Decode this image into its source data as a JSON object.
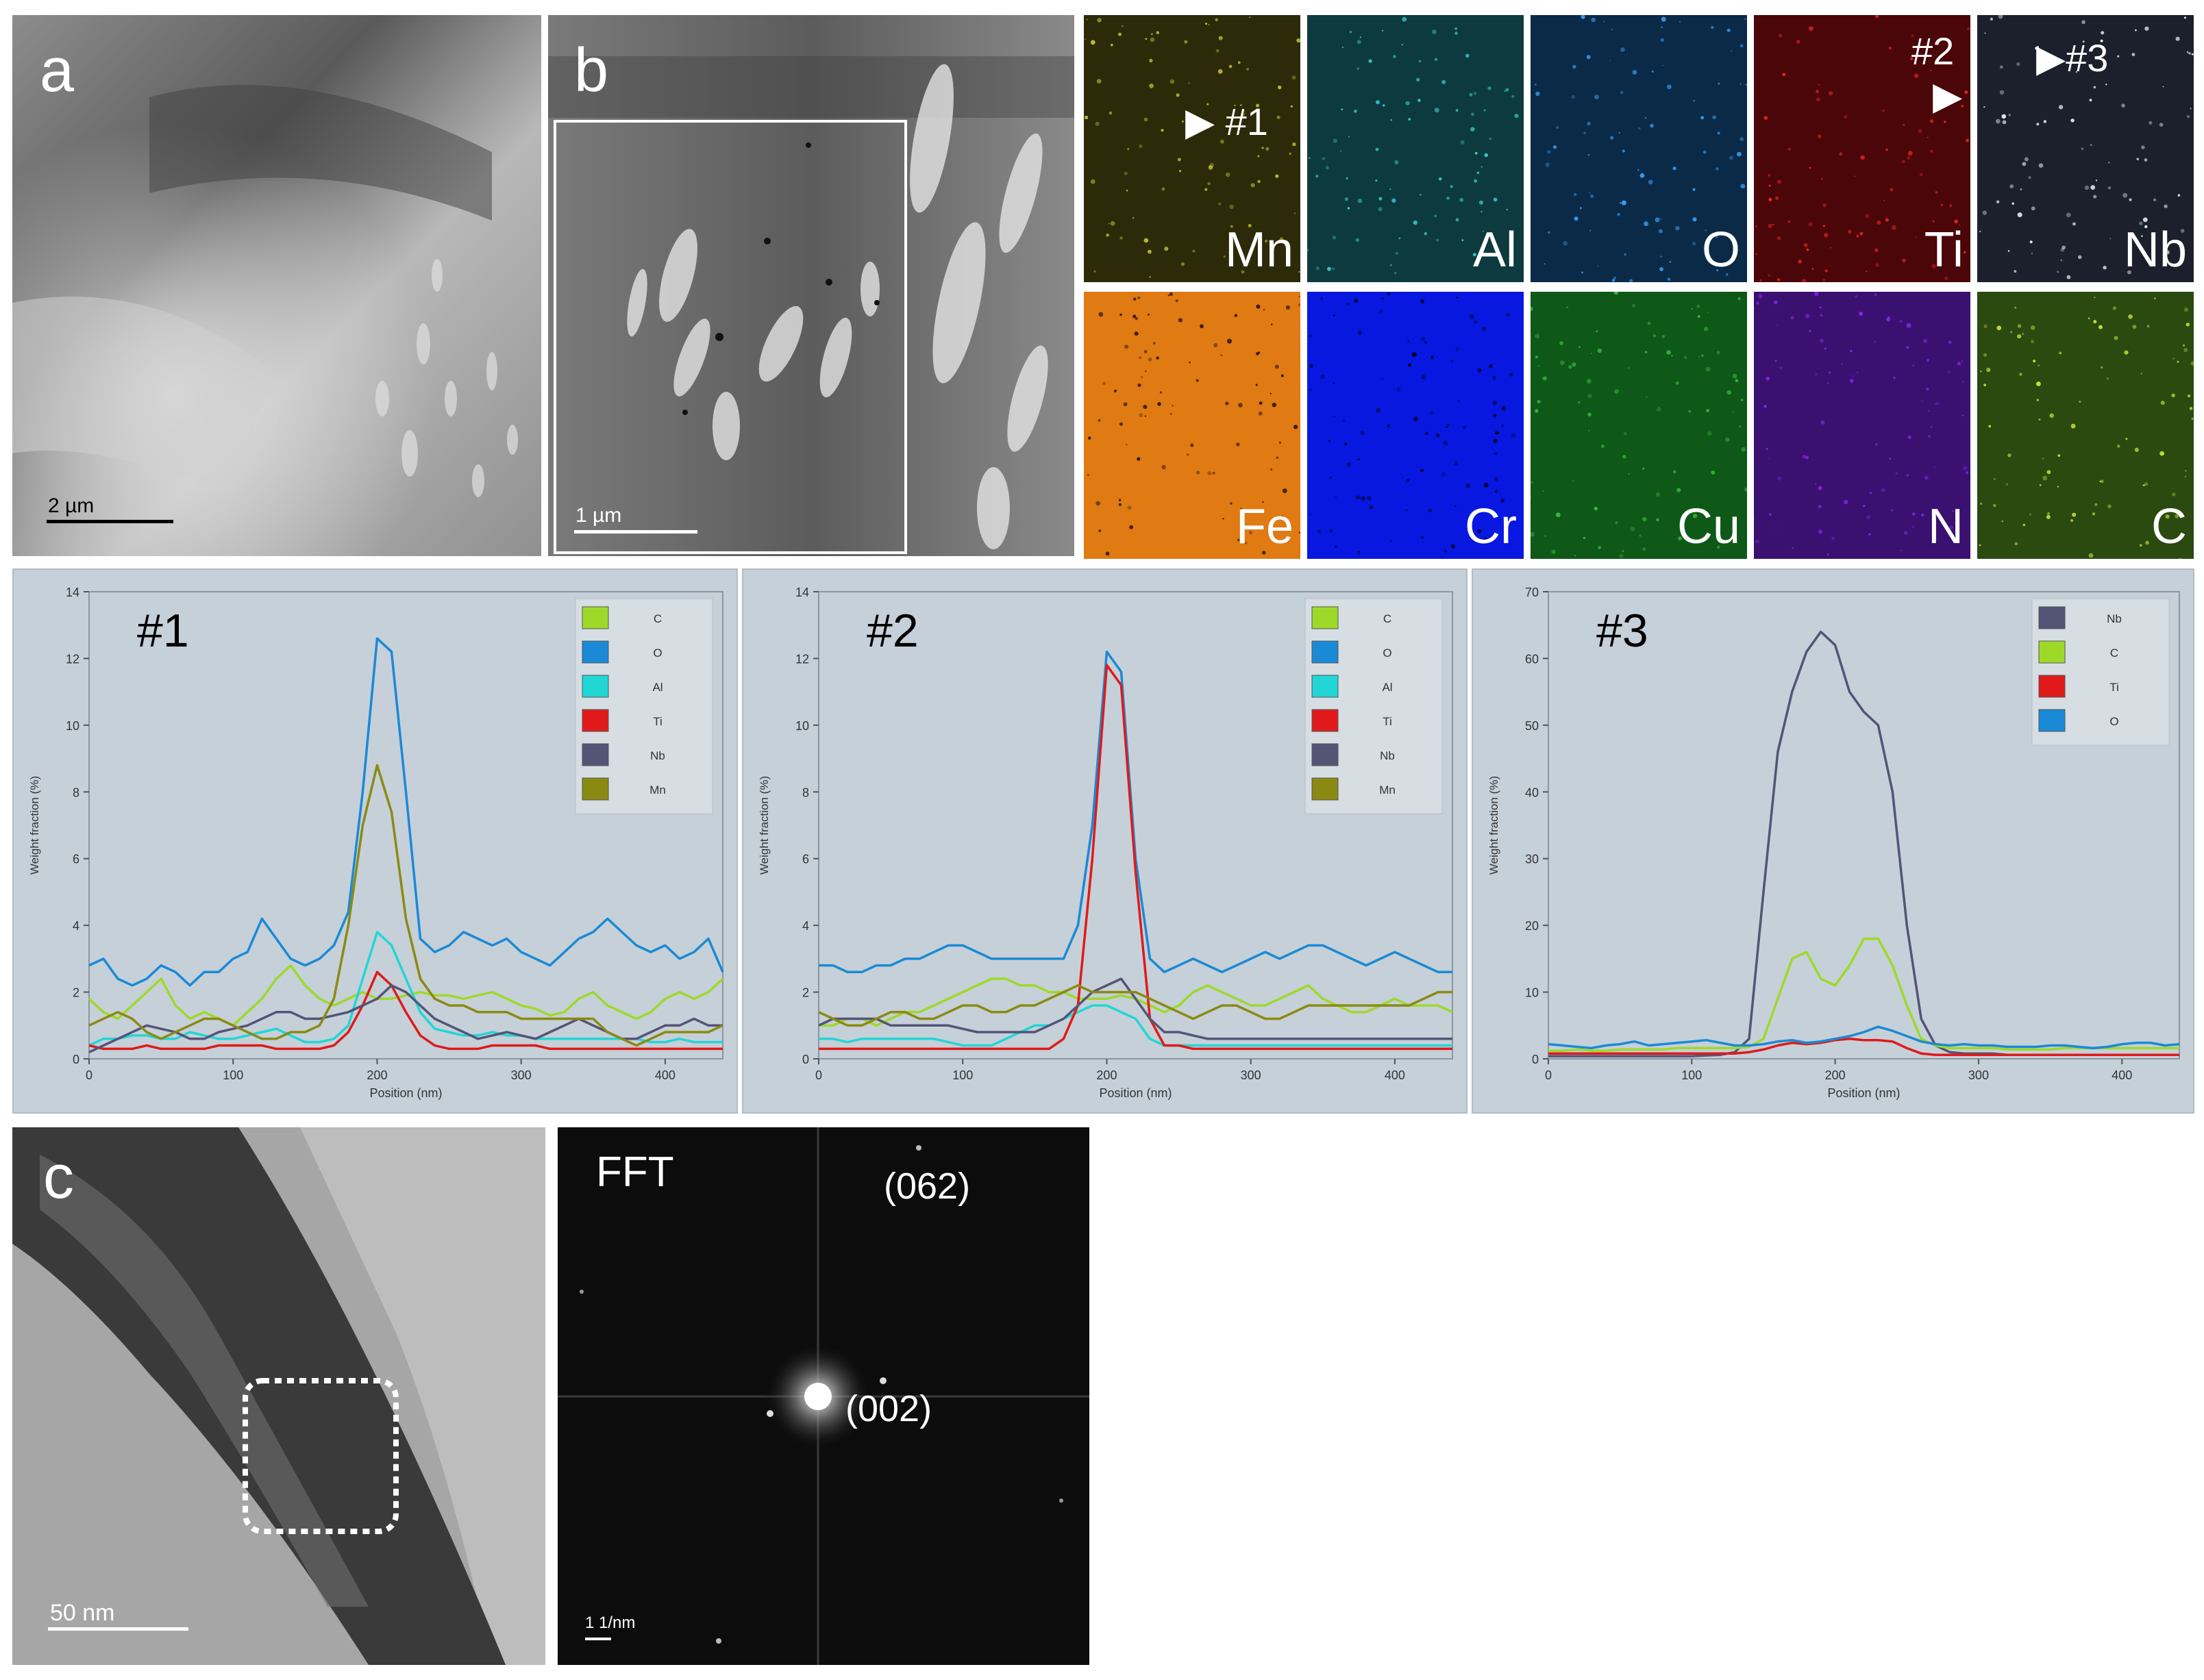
{
  "panels": {
    "a": {
      "label": "a",
      "scale_bar": "2  µm"
    },
    "b": {
      "label": "b",
      "scale_bar": "1  µm"
    },
    "c": {
      "label": "c",
      "scale_bar": "50  nm"
    },
    "fft": {
      "label": "FFT",
      "scale_bar": "1 1/nm",
      "spot_top": "(062)",
      "spot_center": "(002)"
    }
  },
  "eds_maps": [
    {
      "element": "Mn",
      "color": "#2c2a08",
      "dot": "#d6d23a"
    },
    {
      "element": "Al",
      "color": "#0d3a3e",
      "dot": "#3fe0e0"
    },
    {
      "element": "O",
      "color": "#0b2a48",
      "dot": "#3aa6ff"
    },
    {
      "element": "Ti",
      "color": "#4a0608",
      "dot": "#ff2a2a"
    },
    {
      "element": "Nb",
      "color": "#1c1f2c",
      "dot": "#ffffff"
    },
    {
      "element": "Fe",
      "color": "#e07a12",
      "dot": "#1a0c00"
    },
    {
      "element": "Cr",
      "color": "#0818e0",
      "dot": "#000010"
    },
    {
      "element": "Cu",
      "color": "#0e5818",
      "dot": "#3cc040"
    },
    {
      "element": "N",
      "color": "#3a1070",
      "dot": "#8a2cf0"
    },
    {
      "element": "C",
      "color": "#2a4a10",
      "dot": "#d8f040"
    }
  ],
  "markers": {
    "m1": "#1",
    "m2": "#2",
    "m3": "#3"
  },
  "chart_data": [
    {
      "type": "line",
      "title": "#1",
      "xlabel": "Position (nm)",
      "ylabel": "Weight fraction (%)",
      "xlim": [
        0,
        440
      ],
      "ylim": [
        0,
        14
      ],
      "xticks": [
        "0",
        "100",
        "200",
        "300",
        "400"
      ],
      "yticks": [
        "0",
        "2",
        "4",
        "6",
        "8",
        "10",
        "12",
        "14"
      ],
      "x": [
        0,
        10,
        20,
        30,
        40,
        50,
        60,
        70,
        80,
        90,
        100,
        110,
        120,
        130,
        140,
        150,
        160,
        170,
        180,
        190,
        200,
        210,
        220,
        230,
        240,
        250,
        260,
        270,
        280,
        290,
        300,
        310,
        320,
        330,
        340,
        350,
        360,
        370,
        380,
        390,
        400,
        410,
        420,
        430,
        440
      ],
      "series": [
        {
          "name": "C",
          "color": "#9ed92a",
          "values": [
            1.8,
            1.4,
            1.2,
            1.6,
            2.0,
            2.4,
            1.6,
            1.2,
            1.4,
            1.2,
            1.0,
            1.4,
            1.8,
            2.4,
            2.8,
            2.2,
            1.8,
            1.6,
            1.8,
            2.0,
            1.8,
            1.8,
            1.9,
            2.0,
            1.9,
            1.9,
            1.8,
            1.9,
            2.0,
            1.8,
            1.6,
            1.5,
            1.3,
            1.4,
            1.8,
            2.0,
            1.6,
            1.4,
            1.2,
            1.4,
            1.8,
            2.0,
            1.8,
            2.0,
            2.4
          ]
        },
        {
          "name": "O",
          "color": "#1a8ad6",
          "values": [
            2.8,
            3.0,
            2.4,
            2.2,
            2.4,
            2.8,
            2.6,
            2.2,
            2.6,
            2.6,
            3.0,
            3.2,
            4.2,
            3.6,
            3.0,
            2.8,
            3.0,
            3.4,
            4.4,
            8.0,
            12.6,
            12.2,
            8.0,
            3.6,
            3.2,
            3.4,
            3.8,
            3.6,
            3.4,
            3.6,
            3.2,
            3.0,
            2.8,
            3.2,
            3.6,
            3.8,
            4.2,
            3.8,
            3.4,
            3.2,
            3.4,
            3.0,
            3.2,
            3.6,
            2.6
          ]
        },
        {
          "name": "Al",
          "color": "#22d6d6",
          "values": [
            0.4,
            0.6,
            0.6,
            0.7,
            0.7,
            0.6,
            0.6,
            0.8,
            0.7,
            0.6,
            0.6,
            0.7,
            0.8,
            0.9,
            0.7,
            0.5,
            0.5,
            0.6,
            1.0,
            2.4,
            3.8,
            3.4,
            2.4,
            1.4,
            0.9,
            0.8,
            0.7,
            0.7,
            0.8,
            0.7,
            0.7,
            0.6,
            0.6,
            0.6,
            0.6,
            0.6,
            0.6,
            0.6,
            0.6,
            0.5,
            0.5,
            0.6,
            0.5,
            0.5,
            0.5
          ]
        },
        {
          "name": "Ti",
          "color": "#e01a1a",
          "values": [
            0.4,
            0.3,
            0.3,
            0.3,
            0.4,
            0.3,
            0.3,
            0.3,
            0.3,
            0.4,
            0.4,
            0.4,
            0.4,
            0.3,
            0.3,
            0.3,
            0.3,
            0.4,
            0.8,
            1.6,
            2.6,
            2.2,
            1.4,
            0.7,
            0.4,
            0.3,
            0.3,
            0.3,
            0.4,
            0.4,
            0.4,
            0.4,
            0.3,
            0.3,
            0.3,
            0.3,
            0.3,
            0.3,
            0.3,
            0.3,
            0.3,
            0.3,
            0.3,
            0.3,
            0.3
          ]
        },
        {
          "name": "Nb",
          "color": "#545477",
          "values": [
            0.2,
            0.4,
            0.6,
            0.8,
            1.0,
            0.9,
            0.8,
            0.6,
            0.6,
            0.8,
            0.9,
            1.0,
            1.2,
            1.4,
            1.4,
            1.2,
            1.2,
            1.3,
            1.4,
            1.6,
            1.8,
            2.2,
            2.0,
            1.6,
            1.2,
            1.0,
            0.8,
            0.6,
            0.7,
            0.8,
            0.7,
            0.6,
            0.8,
            1.0,
            1.2,
            1.0,
            0.8,
            0.6,
            0.6,
            0.8,
            1.0,
            1.0,
            1.2,
            1.0,
            1.0
          ]
        },
        {
          "name": "Mn",
          "color": "#8a8a12",
          "values": [
            1.0,
            1.2,
            1.4,
            1.2,
            0.8,
            0.6,
            0.8,
            1.0,
            1.2,
            1.2,
            1.0,
            0.8,
            0.6,
            0.6,
            0.8,
            0.8,
            1.0,
            1.8,
            4.0,
            7.0,
            8.8,
            7.4,
            4.2,
            2.4,
            1.8,
            1.6,
            1.6,
            1.4,
            1.4,
            1.4,
            1.2,
            1.2,
            1.2,
            1.2,
            1.2,
            1.2,
            0.8,
            0.6,
            0.4,
            0.6,
            0.8,
            0.8,
            0.8,
            0.8,
            1.0
          ]
        }
      ]
    },
    {
      "type": "line",
      "title": "#2",
      "xlabel": "Position (nm)",
      "ylabel": "Weight fraction (%)",
      "xlim": [
        0,
        440
      ],
      "ylim": [
        0,
        14
      ],
      "xticks": [
        "0",
        "100",
        "200",
        "300",
        "400"
      ],
      "yticks": [
        "0",
        "2",
        "4",
        "6",
        "8",
        "10",
        "12",
        "14"
      ],
      "x": [
        0,
        10,
        20,
        30,
        40,
        50,
        60,
        70,
        80,
        90,
        100,
        110,
        120,
        130,
        140,
        150,
        160,
        170,
        180,
        190,
        200,
        210,
        220,
        230,
        240,
        250,
        260,
        270,
        280,
        290,
        300,
        310,
        320,
        330,
        340,
        350,
        360,
        370,
        380,
        390,
        400,
        410,
        420,
        430,
        440
      ],
      "series": [
        {
          "name": "C",
          "color": "#9ed92a",
          "values": [
            1.0,
            1.0,
            1.2,
            1.2,
            1.0,
            1.2,
            1.4,
            1.4,
            1.6,
            1.8,
            2.0,
            2.2,
            2.4,
            2.4,
            2.2,
            2.2,
            2.0,
            2.0,
            1.8,
            1.8,
            1.8,
            1.9,
            1.8,
            1.6,
            1.4,
            1.6,
            2.0,
            2.2,
            2.0,
            1.8,
            1.6,
            1.6,
            1.8,
            2.0,
            2.2,
            1.8,
            1.6,
            1.4,
            1.4,
            1.6,
            1.8,
            1.6,
            1.6,
            1.6,
            1.4
          ]
        },
        {
          "name": "O",
          "color": "#1a8ad6",
          "values": [
            2.8,
            2.8,
            2.6,
            2.6,
            2.8,
            2.8,
            3.0,
            3.0,
            3.2,
            3.4,
            3.4,
            3.2,
            3.0,
            3.0,
            3.0,
            3.0,
            3.0,
            3.0,
            4.0,
            7.0,
            12.2,
            11.6,
            6.0,
            3.0,
            2.6,
            2.8,
            3.0,
            2.8,
            2.6,
            2.8,
            3.0,
            3.2,
            3.0,
            3.2,
            3.4,
            3.4,
            3.2,
            3.0,
            2.8,
            3.0,
            3.2,
            3.0,
            2.8,
            2.6,
            2.6
          ]
        },
        {
          "name": "Al",
          "color": "#22d6d6",
          "values": [
            0.6,
            0.6,
            0.5,
            0.6,
            0.6,
            0.6,
            0.6,
            0.6,
            0.6,
            0.5,
            0.4,
            0.4,
            0.4,
            0.6,
            0.8,
            1.0,
            1.0,
            1.2,
            1.4,
            1.6,
            1.6,
            1.4,
            1.2,
            0.6,
            0.4,
            0.4,
            0.4,
            0.4,
            0.4,
            0.4,
            0.4,
            0.4,
            0.4,
            0.4,
            0.4,
            0.4,
            0.4,
            0.4,
            0.4,
            0.4,
            0.4,
            0.4,
            0.4,
            0.4,
            0.4
          ]
        },
        {
          "name": "Ti",
          "color": "#e01a1a",
          "values": [
            0.3,
            0.3,
            0.3,
            0.3,
            0.3,
            0.3,
            0.3,
            0.3,
            0.3,
            0.3,
            0.3,
            0.3,
            0.3,
            0.3,
            0.3,
            0.3,
            0.3,
            0.6,
            1.6,
            6.0,
            11.8,
            11.2,
            5.6,
            1.2,
            0.4,
            0.4,
            0.3,
            0.3,
            0.3,
            0.3,
            0.3,
            0.3,
            0.3,
            0.3,
            0.3,
            0.3,
            0.3,
            0.3,
            0.3,
            0.3,
            0.3,
            0.3,
            0.3,
            0.3,
            0.3
          ]
        },
        {
          "name": "Nb",
          "color": "#545477",
          "values": [
            1.0,
            1.2,
            1.2,
            1.2,
            1.2,
            1.0,
            1.0,
            1.0,
            1.0,
            1.0,
            0.9,
            0.8,
            0.8,
            0.8,
            0.8,
            0.8,
            1.0,
            1.2,
            1.6,
            2.0,
            2.2,
            2.4,
            1.8,
            1.2,
            0.8,
            0.8,
            0.7,
            0.6,
            0.6,
            0.6,
            0.6,
            0.6,
            0.6,
            0.6,
            0.6,
            0.6,
            0.6,
            0.6,
            0.6,
            0.6,
            0.6,
            0.6,
            0.6,
            0.6,
            0.6
          ]
        },
        {
          "name": "Mn",
          "color": "#8a8a12",
          "values": [
            1.4,
            1.2,
            1.0,
            1.0,
            1.2,
            1.4,
            1.4,
            1.2,
            1.2,
            1.4,
            1.6,
            1.6,
            1.4,
            1.4,
            1.6,
            1.6,
            1.8,
            2.0,
            2.2,
            2.0,
            2.0,
            2.0,
            2.0,
            1.8,
            1.6,
            1.4,
            1.2,
            1.4,
            1.6,
            1.6,
            1.4,
            1.2,
            1.2,
            1.4,
            1.6,
            1.6,
            1.6,
            1.6,
            1.6,
            1.6,
            1.6,
            1.6,
            1.8,
            2.0,
            2.0
          ]
        }
      ]
    },
    {
      "type": "line",
      "title": "#3",
      "xlabel": "Position (nm)",
      "ylabel": "Weight fraction (%)",
      "xlim": [
        0,
        440
      ],
      "ylim": [
        0,
        70
      ],
      "xticks": [
        "0",
        "100",
        "200",
        "300",
        "400"
      ],
      "yticks": [
        "0",
        "10",
        "20",
        "30",
        "40",
        "50",
        "60",
        "70"
      ],
      "x": [
        0,
        10,
        20,
        30,
        40,
        50,
        60,
        70,
        80,
        90,
        100,
        110,
        120,
        130,
        140,
        150,
        160,
        170,
        180,
        190,
        200,
        210,
        220,
        230,
        240,
        250,
        260,
        270,
        280,
        290,
        300,
        310,
        320,
        330,
        340,
        350,
        360,
        370,
        380,
        390,
        400,
        410,
        420,
        430,
        440
      ],
      "series": [
        {
          "name": "Nb",
          "color": "#545477",
          "values": [
            0.4,
            0.4,
            0.4,
            0.4,
            0.4,
            0.4,
            0.4,
            0.4,
            0.4,
            0.4,
            0.4,
            0.5,
            0.6,
            1.0,
            3.0,
            25.0,
            46.0,
            55.0,
            61.0,
            64.0,
            62.0,
            55.0,
            52.0,
            50.0,
            40.0,
            20.0,
            6.0,
            2.0,
            1.0,
            0.8,
            0.8,
            0.8,
            0.6,
            0.6,
            0.6,
            0.6,
            0.6,
            0.6,
            0.6,
            0.6,
            0.6,
            0.6,
            0.6,
            0.6,
            0.6
          ]
        },
        {
          "name": "C",
          "color": "#9ed92a",
          "values": [
            1.2,
            1.2,
            1.4,
            1.2,
            1.2,
            1.4,
            1.4,
            1.4,
            1.4,
            1.6,
            1.6,
            1.6,
            1.6,
            1.6,
            1.8,
            3.0,
            9.0,
            15.0,
            16.0,
            12.0,
            11.0,
            14.0,
            18.0,
            18.0,
            14.0,
            8.0,
            3.0,
            2.0,
            1.6,
            1.6,
            1.6,
            1.6,
            1.4,
            1.4,
            1.4,
            1.4,
            1.6,
            1.6,
            1.6,
            1.6,
            1.6,
            1.6,
            1.6,
            1.6,
            1.6
          ]
        },
        {
          "name": "Ti",
          "color": "#e01a1a",
          "values": [
            0.8,
            0.8,
            0.8,
            0.8,
            0.8,
            0.8,
            0.8,
            0.8,
            0.8,
            0.8,
            0.8,
            0.8,
            0.8,
            0.8,
            1.0,
            1.4,
            2.0,
            2.4,
            2.2,
            2.4,
            2.8,
            3.0,
            2.8,
            2.8,
            2.6,
            1.6,
            0.8,
            0.6,
            0.6,
            0.6,
            0.6,
            0.6,
            0.6,
            0.6,
            0.6,
            0.6,
            0.6,
            0.6,
            0.6,
            0.6,
            0.6,
            0.6,
            0.6,
            0.6,
            0.6
          ]
        },
        {
          "name": "O",
          "color": "#1a8ad6",
          "values": [
            2.2,
            2.0,
            1.8,
            1.6,
            2.0,
            2.2,
            2.6,
            2.0,
            2.2,
            2.4,
            2.6,
            2.8,
            2.4,
            2.0,
            2.0,
            2.2,
            2.6,
            2.8,
            2.4,
            2.6,
            3.0,
            3.4,
            4.0,
            4.8,
            4.2,
            3.4,
            2.6,
            2.2,
            2.0,
            2.2,
            2.0,
            2.0,
            1.8,
            1.8,
            1.8,
            2.0,
            2.0,
            1.8,
            1.6,
            1.8,
            2.2,
            2.4,
            2.4,
            2.0,
            2.2
          ]
        }
      ]
    }
  ]
}
